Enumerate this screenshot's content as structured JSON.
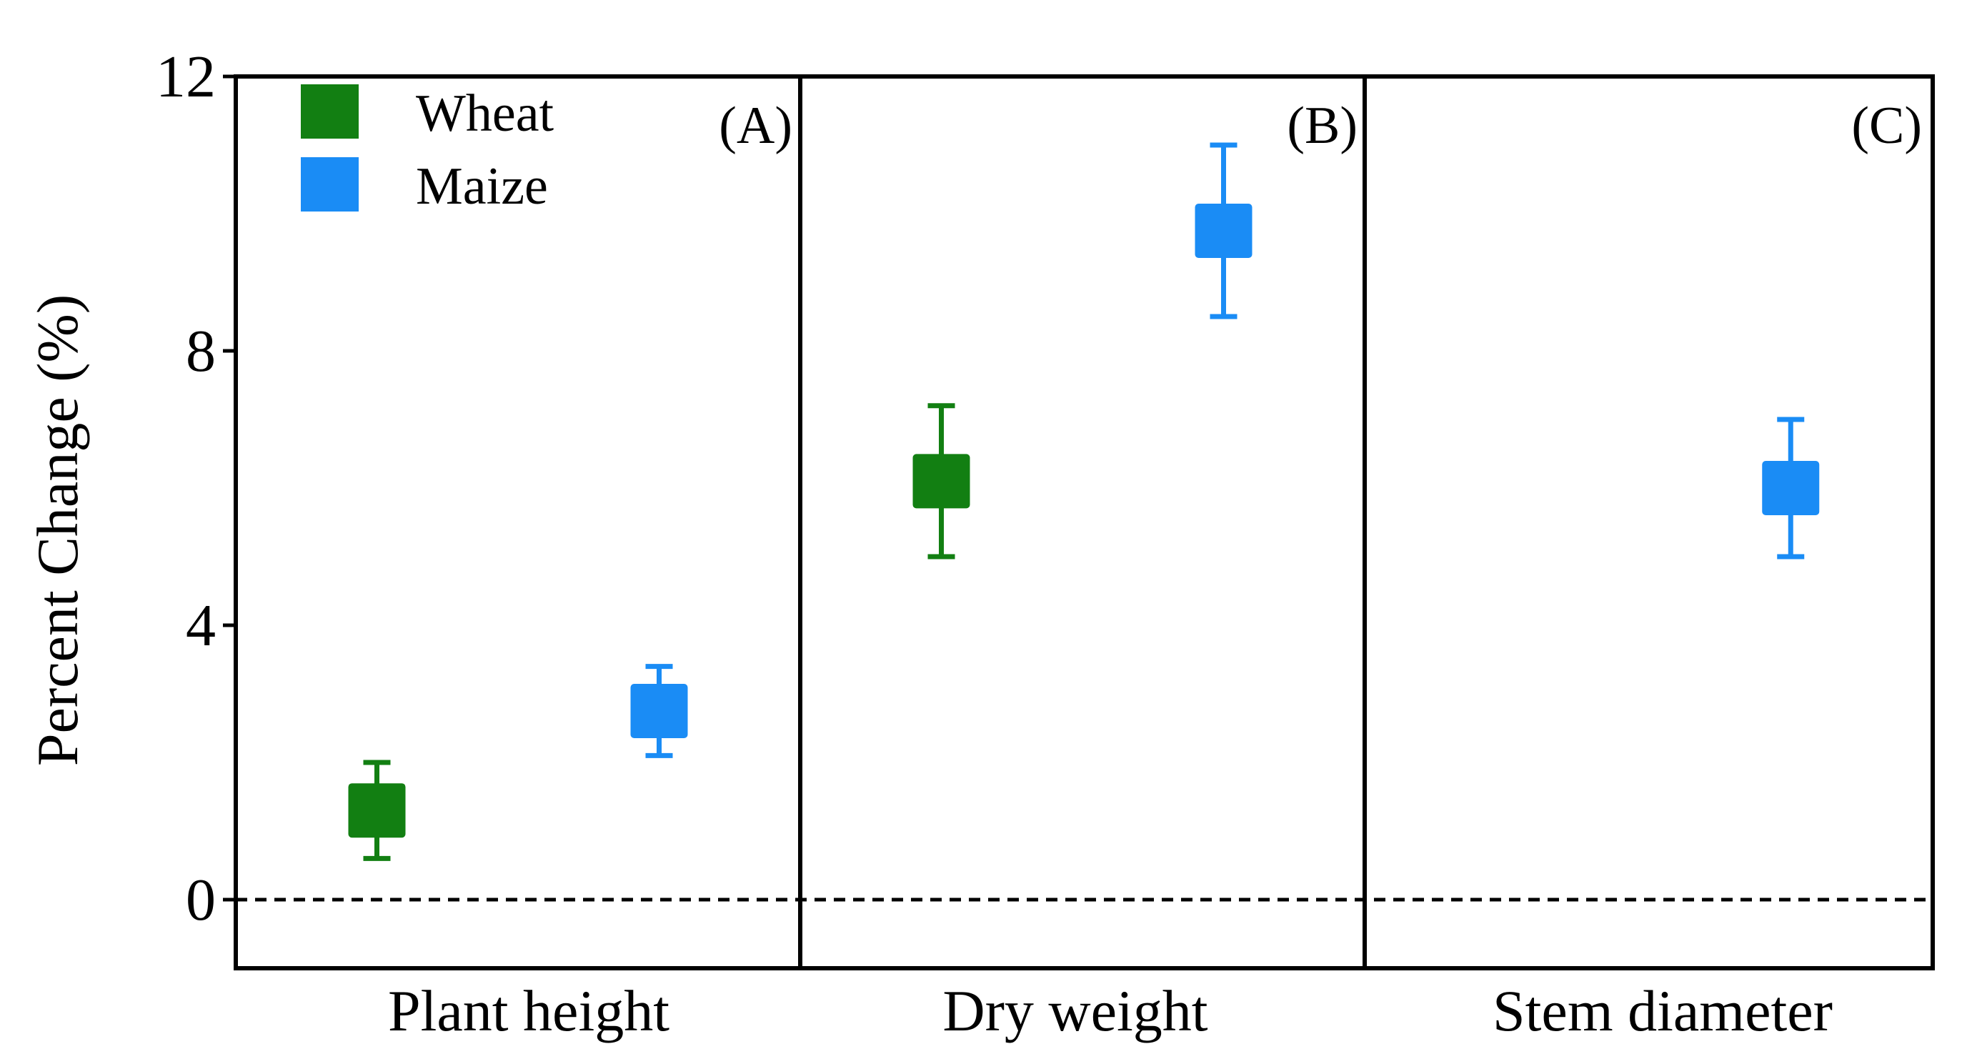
{
  "chart_data": {
    "type": "scatter",
    "ylabel": "Percent Change (%)",
    "ylim": [
      -1,
      12
    ],
    "yticks": [
      0,
      4,
      8,
      12
    ],
    "reference_line": 0,
    "colors": {
      "Wheat": "#127f12",
      "Maize": "#1a8cf5"
    },
    "legend": {
      "placement": "top-left",
      "entries": [
        {
          "name": "Wheat",
          "color": "#127f12"
        },
        {
          "name": "Maize",
          "color": "#1a8cf5"
        }
      ]
    },
    "panels": [
      {
        "tag": "(A)",
        "category": "Plant height",
        "points": [
          {
            "series": "Wheat",
            "value": 1.3,
            "ci_low": 0.6,
            "ci_high": 2.0
          },
          {
            "series": "Maize",
            "value": 2.75,
            "ci_low": 2.1,
            "ci_high": 3.4
          }
        ]
      },
      {
        "tag": "(B)",
        "category": "Dry weight",
        "points": [
          {
            "series": "Wheat",
            "value": 6.1,
            "ci_low": 5.0,
            "ci_high": 7.2
          },
          {
            "series": "Maize",
            "value": 9.75,
            "ci_low": 8.5,
            "ci_high": 11.0
          }
        ]
      },
      {
        "tag": "(C)",
        "category": "Stem diameter",
        "points": [
          {
            "series": "Maize",
            "value": 6.0,
            "ci_low": 5.0,
            "ci_high": 7.0
          }
        ]
      }
    ]
  }
}
